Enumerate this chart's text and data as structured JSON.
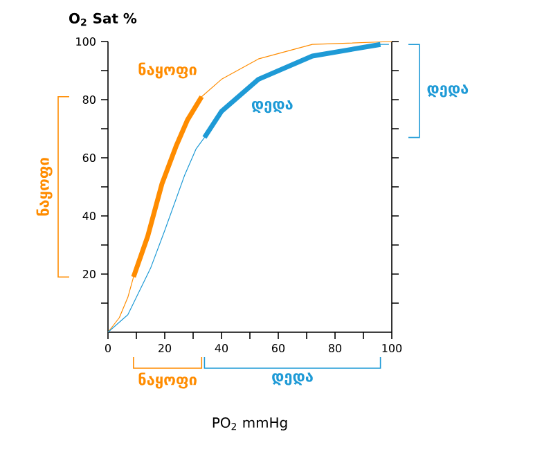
{
  "chart_data": {
    "type": "line",
    "xlabel": "PO$_{2}$ mmHg",
    "ylabel": "O$_{2}$ Sat %",
    "series": [
      {
        "name": "ნაყოფი",
        "color": "#ff8c00",
        "x": [
          0,
          4,
          7,
          9,
          14,
          19,
          24,
          28,
          33,
          40,
          53,
          72,
          100
        ],
        "values": [
          0,
          5,
          12,
          19,
          33,
          51,
          64,
          73,
          81,
          87,
          94,
          99,
          100
        ]
      },
      {
        "name": "დედა",
        "color": "#1e9ad6",
        "x": [
          0,
          7,
          15,
          20,
          27,
          31,
          34,
          40,
          53,
          72,
          95,
          99
        ],
        "values": [
          0,
          6,
          22,
          35,
          54,
          63,
          67,
          76,
          87,
          95,
          99,
          99
        ]
      },
      {
        "color": "#ff8c00",
        "x": [
          9,
          14,
          19,
          24,
          28,
          33
        ],
        "values": [
          19,
          33,
          51,
          64,
          73,
          81
        ]
      },
      {
        "color": "#1e9ad6",
        "x": [
          34,
          40,
          53,
          72,
          96
        ],
        "values": [
          67,
          76,
          87,
          95,
          99
        ]
      }
    ],
    "annotations": [
      "ნაყოფი",
      "დედა",
      "ნაყოფი",
      "დედა"
    ],
    "xlim": [
      0,
      100
    ],
    "ylim": [
      0,
      100
    ],
    "xticks": [
      0,
      {
        "value": 10,
        "label": null
      },
      20,
      {
        "value": 30,
        "label": null
      },
      40,
      {
        "value": 50,
        "label": null
      },
      60,
      {
        "value": 70,
        "label": null
      },
      80,
      {
        "value": 90,
        "label": null
      },
      100
    ],
    "yticks": [
      {
        "value": 10,
        "label": null
      },
      20,
      {
        "value": 30,
        "label": null
      },
      40,
      {
        "value": 50,
        "label": null
      },
      60,
      {
        "value": 70,
        "label": null
      },
      80,
      {
        "value": 90,
        "label": null
      },
      100
    ],
    "grid": false,
    "legend": false,
    "marker": "none",
    "line_style": "solid"
  }
}
